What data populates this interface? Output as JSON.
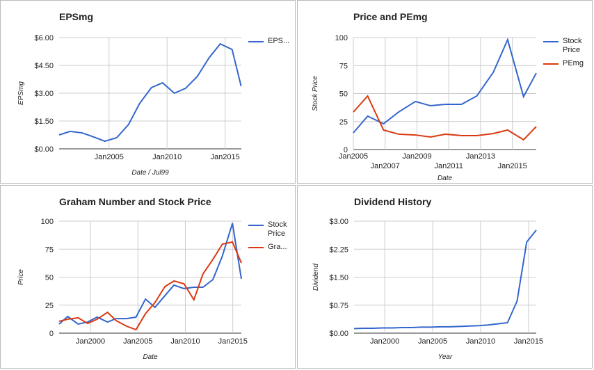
{
  "chart_data": [
    {
      "type": "line",
      "title": "EPSmg",
      "x_label": "Date / Jul99",
      "y_label": "EPSmg",
      "x": [
        2000.7,
        2001.65,
        2002.67,
        2003.68,
        2004.64,
        2005.66,
        2006.68,
        2007.63,
        2008.65,
        2009.61,
        2010.63,
        2011.59,
        2012.6,
        2013.62,
        2014.58,
        2015.6,
        2016.38
      ],
      "series": [
        {
          "name": "EPS...",
          "color": "#3366cc",
          "values": [
            0.75,
            0.94,
            0.86,
            0.64,
            0.41,
            0.6,
            1.31,
            2.44,
            3.3,
            3.56,
            3.0,
            3.26,
            3.9,
            4.91,
            5.66,
            5.36,
            3.38
          ]
        }
      ],
      "xlim": [
        2000.7,
        2016.4
      ],
      "ylim": [
        0,
        6
      ],
      "xticks": [
        {
          "value": 2005,
          "label": "Jan2005"
        },
        {
          "value": 2010,
          "label": "Jan2010"
        },
        {
          "value": 2015,
          "label": "Jan2015"
        }
      ],
      "yticks": [
        {
          "value": 0,
          "label": "$0.00"
        },
        {
          "value": 1.5,
          "label": "$1.50"
        },
        {
          "value": 3,
          "label": "$3.00"
        },
        {
          "value": 4.5,
          "label": "$4.50"
        },
        {
          "value": 6,
          "label": "$6.00"
        }
      ],
      "grid": true
    },
    {
      "type": "line",
      "title": "Price and PEmg",
      "x_label": "Date",
      "y_label": "Stock Price",
      "x": [
        2005.0,
        2005.9,
        2006.9,
        2007.85,
        2008.9,
        2009.85,
        2010.8,
        2011.8,
        2012.76,
        2013.8,
        2014.7,
        2015.7,
        2016.5
      ],
      "series": [
        {
          "name": "Stock Price",
          "color": "#3366cc",
          "values": [
            14.9,
            29.8,
            23,
            33.5,
            42.9,
            39.1,
            40.4,
            40.4,
            47.8,
            69,
            98.1,
            47.2,
            68.3
          ]
        },
        {
          "name": "PEmg",
          "color": "#dc3912",
          "values": [
            33.5,
            47.8,
            17.4,
            13.7,
            13,
            11.2,
            13.7,
            12.4,
            12.4,
            14.3,
            17.4,
            8.7,
            20.5
          ]
        }
      ],
      "xlim": [
        2005,
        2016.5
      ],
      "ylim": [
        0,
        100
      ],
      "xticks": [
        {
          "value": 2005,
          "label": "Jan2005"
        },
        {
          "value": 2007,
          "label": "Jan2007"
        },
        {
          "value": 2009,
          "label": "Jan2009"
        },
        {
          "value": 2011,
          "label": "Jan2011"
        },
        {
          "value": 2013,
          "label": "Jan2013"
        },
        {
          "value": 2015,
          "label": "Jan2015"
        }
      ],
      "yticks": [
        0,
        25,
        50,
        75,
        100
      ],
      "grid": true,
      "stagger_xticks": true
    },
    {
      "type": "line",
      "title": "Graham Number and Stock Price",
      "x_label": "Date",
      "y_label": "Price",
      "x": [
        1996.7,
        1997.6,
        1998.7,
        1999.7,
        2000.7,
        2001.8,
        2002.7,
        2003.8,
        2004.8,
        2005.8,
        2006.8,
        2007.85,
        2008.8,
        2009.85,
        2010.9,
        2011.85,
        2012.9,
        2013.9,
        2014.96,
        2015.9
      ],
      "series": [
        {
          "name": "Stock Price",
          "color": "#3366cc",
          "values": [
            8.1,
            14.9,
            8.1,
            9.9,
            14.3,
            9.9,
            13,
            13,
            14.3,
            30.4,
            23,
            33.5,
            42.9,
            39.8,
            41,
            41,
            47.8,
            68.9,
            98.1,
            48.4
          ]
        },
        {
          "name": "Gra...",
          "color": "#dc3912",
          "values": [
            10.6,
            12.4,
            13.7,
            8.7,
            12.4,
            18.6,
            11.2,
            6.2,
            3.1,
            17.4,
            27.3,
            41.6,
            46.6,
            44.1,
            29.8,
            52.8,
            65.8,
            79.5,
            81.4,
            62.7
          ]
        }
      ],
      "xlim": [
        1996.7,
        2015.9
      ],
      "ylim": [
        0,
        100
      ],
      "xticks": [
        {
          "value": 2000,
          "label": "Jan2000"
        },
        {
          "value": 2005,
          "label": "Jan2005"
        },
        {
          "value": 2010,
          "label": "Jan2010"
        },
        {
          "value": 2015,
          "label": "Jan2015"
        }
      ],
      "yticks": [
        0,
        25,
        50,
        75,
        100
      ],
      "grid": true
    },
    {
      "type": "line",
      "title": "Dividend History",
      "x_label": "Year",
      "y_label": "Dividend",
      "x": [
        1996.8,
        1997.8,
        1998.8,
        1999.8,
        2000.8,
        2001.8,
        2002.8,
        2003.8,
        2004.8,
        2005.8,
        2006.8,
        2007.8,
        2008.8,
        2009.8,
        2010.8,
        2011.8,
        2012.8,
        2013.8,
        2014.8,
        2015.8
      ],
      "series": [
        {
          "name": "Dividend",
          "color": "#3366cc",
          "values": [
            0.12,
            0.13,
            0.13,
            0.14,
            0.14,
            0.15,
            0.15,
            0.16,
            0.16,
            0.17,
            0.17,
            0.18,
            0.19,
            0.2,
            0.22,
            0.25,
            0.28,
            0.86,
            2.44,
            2.76
          ]
        }
      ],
      "xlim": [
        1996.8,
        2015.8
      ],
      "ylim": [
        0,
        3
      ],
      "xticks": [
        {
          "value": 2000,
          "label": "Jan2000"
        },
        {
          "value": 2005,
          "label": "Jan2005"
        },
        {
          "value": 2010,
          "label": "Jan2010"
        },
        {
          "value": 2015,
          "label": "Jan2015"
        }
      ],
      "yticks": [
        {
          "value": 0,
          "label": "$0.00"
        },
        {
          "value": 0.75,
          "label": "$0.75"
        },
        {
          "value": 1.5,
          "label": "$1.50"
        },
        {
          "value": 2.25,
          "label": "$2.25"
        },
        {
          "value": 3,
          "label": "$3.00"
        }
      ],
      "grid": true,
      "legend": "none"
    }
  ]
}
